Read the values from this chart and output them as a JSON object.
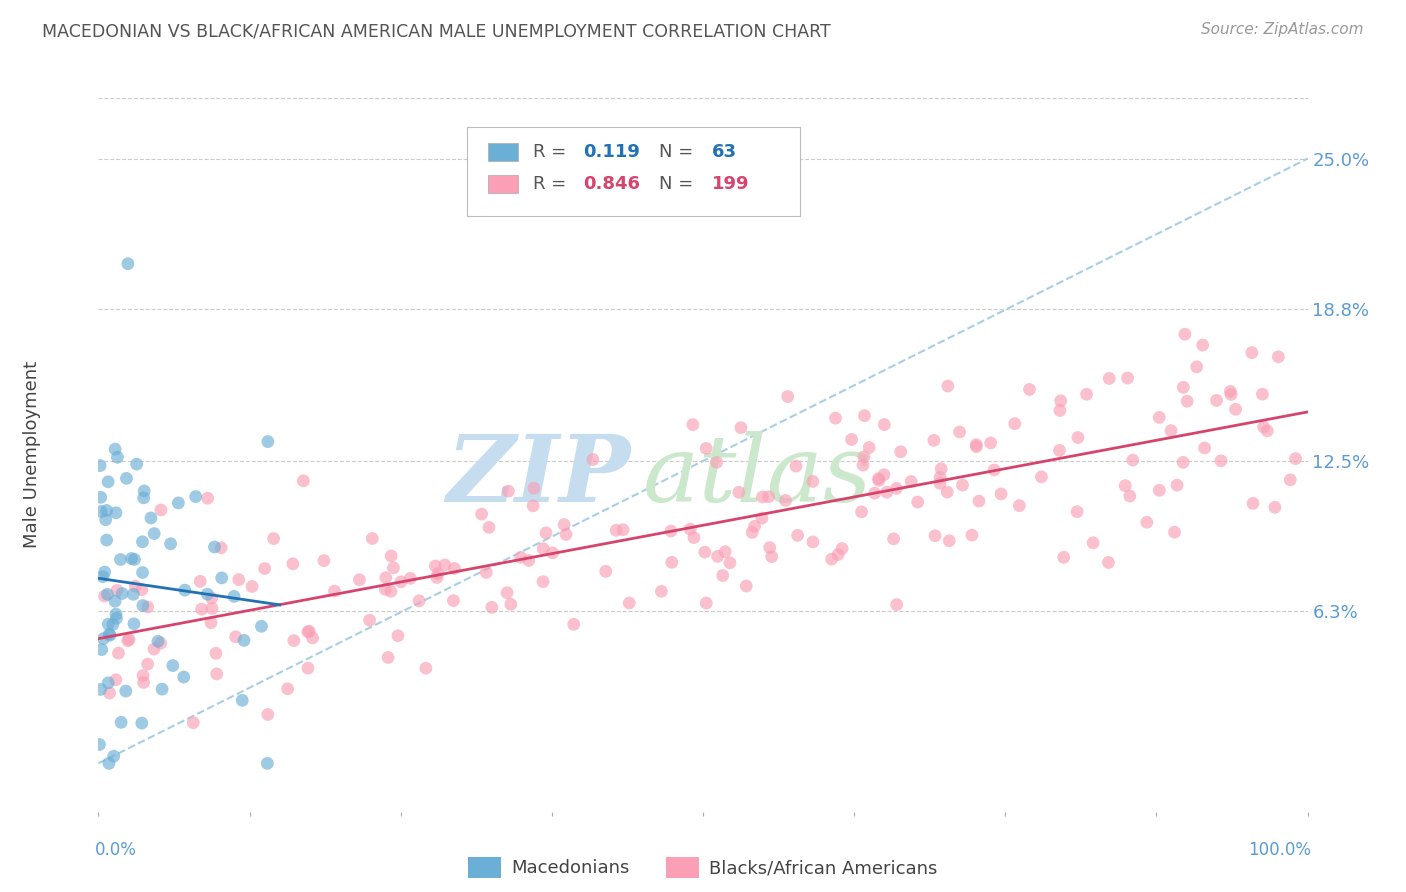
{
  "title": "MACEDONIAN VS BLACK/AFRICAN AMERICAN MALE UNEMPLOYMENT CORRELATION CHART",
  "source": "Source: ZipAtlas.com",
  "ylabel": "Male Unemployment",
  "ytick_labels": [
    "6.3%",
    "12.5%",
    "18.8%",
    "25.0%"
  ],
  "ytick_values": [
    0.063,
    0.125,
    0.188,
    0.25
  ],
  "xlim": [
    0.0,
    1.0
  ],
  "ylim": [
    -0.02,
    0.275
  ],
  "color_macedonian": "#6baed6",
  "color_black": "#fa9fb5",
  "color_trend_macedonian": "#2171b5",
  "color_trend_black": "#d6446e",
  "color_dashed_line": "#9ecae1",
  "watermark_zip": "ZIP",
  "watermark_atlas": "atlas",
  "watermark_color_zip": "#c8dff0",
  "watermark_color_atlas": "#d8e8c8",
  "title_color": "#555555",
  "axis_label_color": "#5b9bd5",
  "source_color": "#999999",
  "background_color": "#ffffff",
  "seed": 42,
  "macedonian_n": 63,
  "black_n": 199
}
